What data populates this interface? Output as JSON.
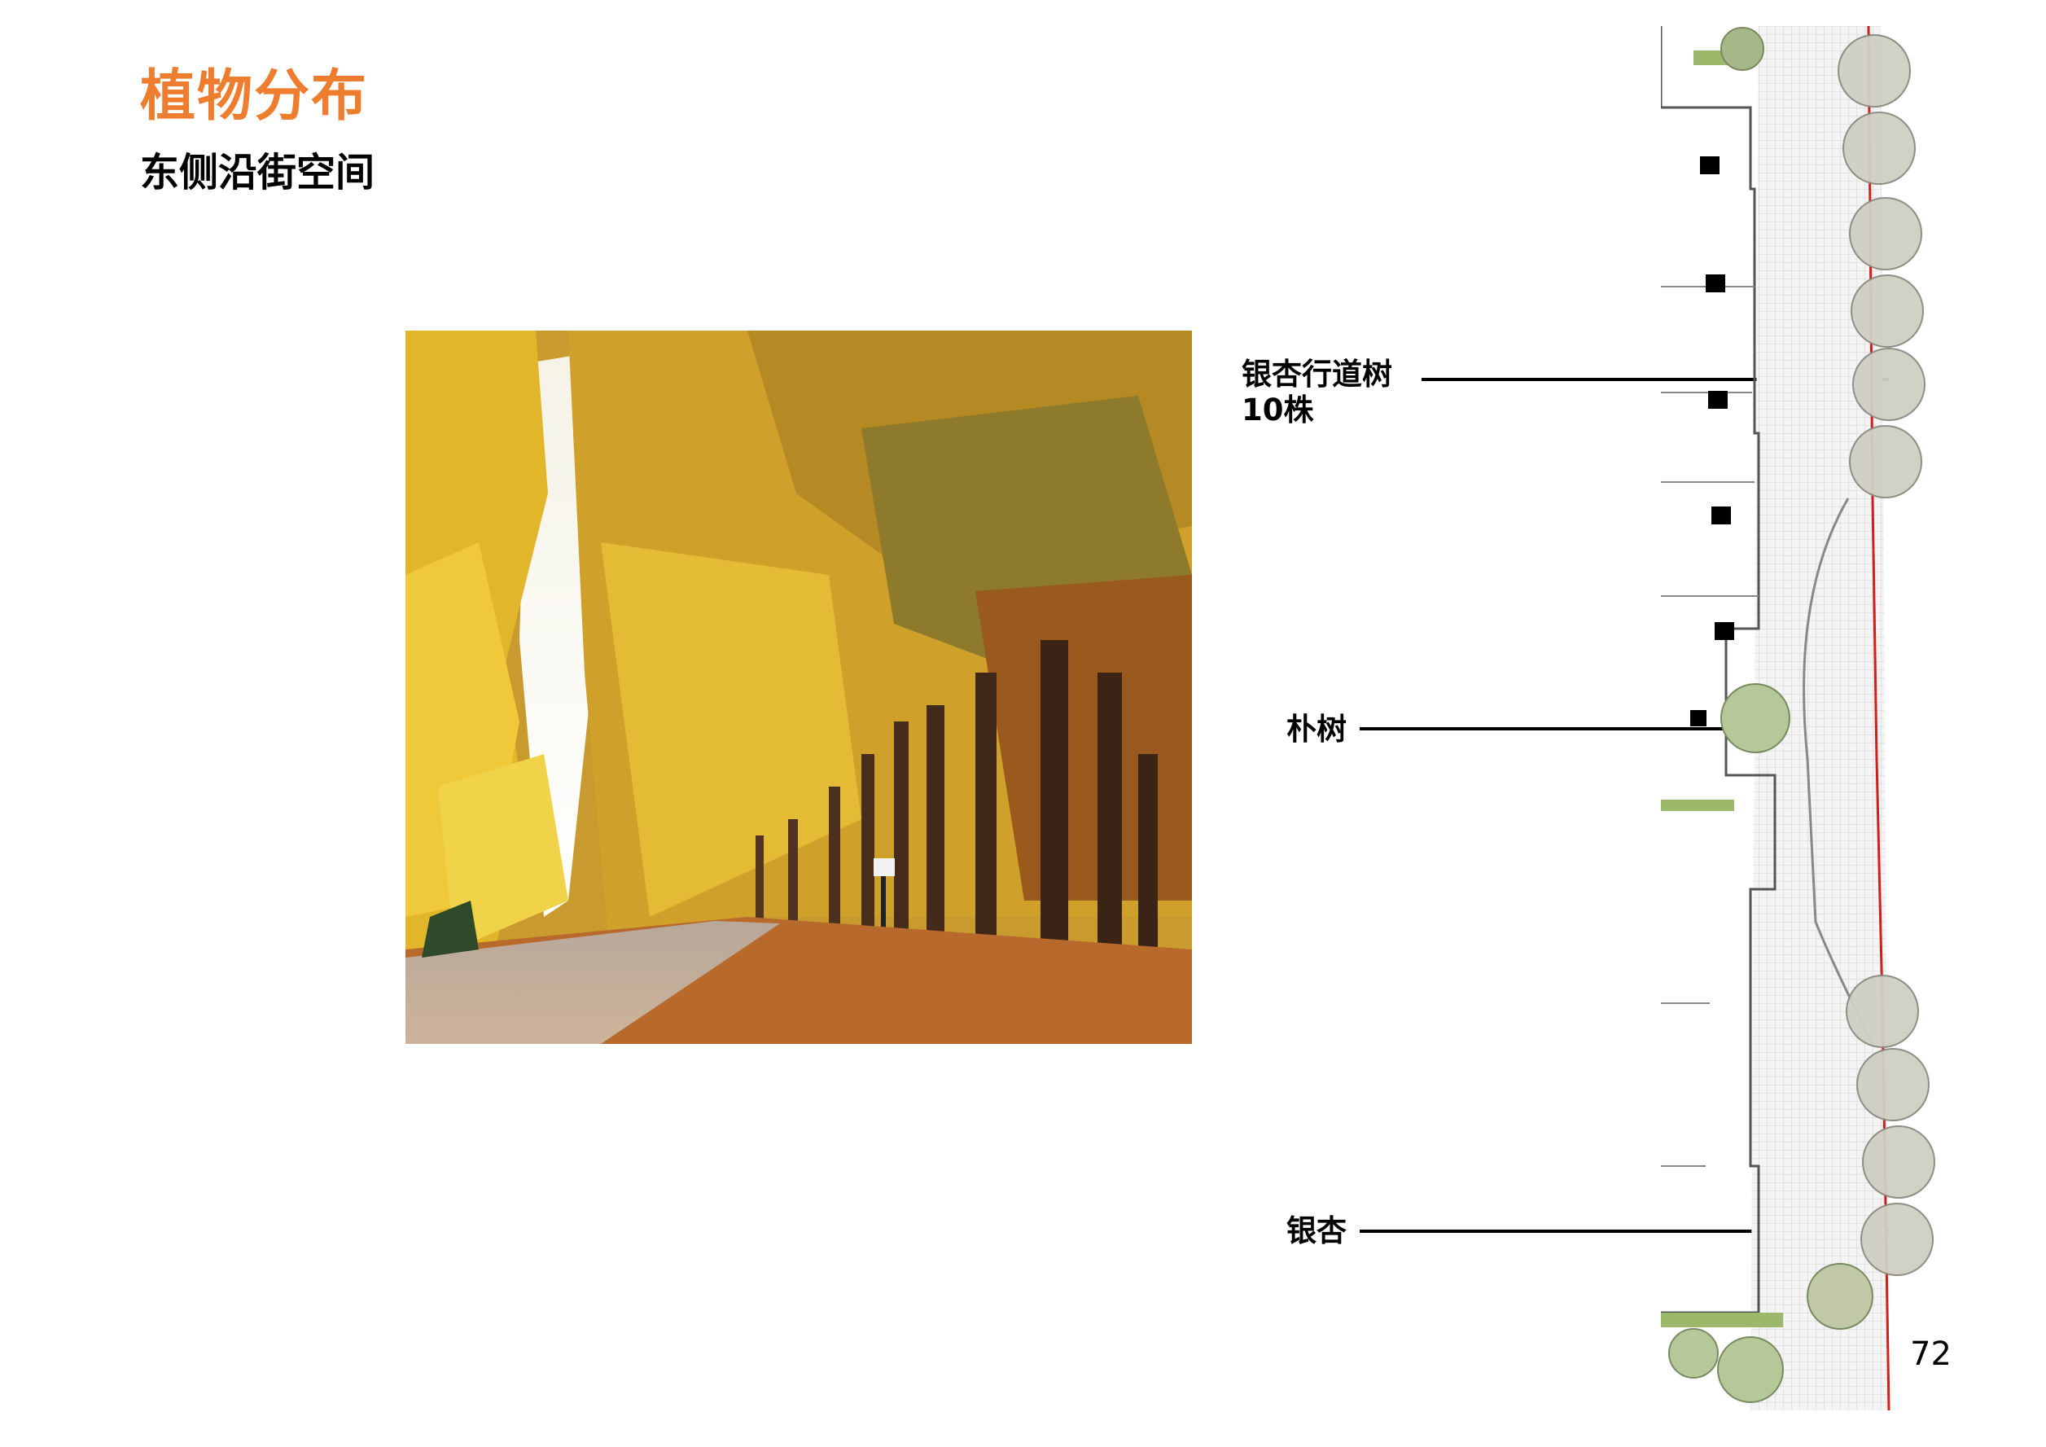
{
  "header": {
    "title": "植物分布",
    "subtitle": "东侧沿街空间"
  },
  "labels": {
    "ginkgo_row": "银杏行道树",
    "ginkgo_row_count": "10株",
    "hackberry": "朴树",
    "ginkgo": "银杏"
  },
  "page_number": "72",
  "colors": {
    "title": "#ef7d2f",
    "foliage_yellow": "#e7b52a",
    "foliage_brown": "#8a5a1c",
    "plan_red_line": "#d0201a",
    "plan_green": "#9cb86a"
  }
}
